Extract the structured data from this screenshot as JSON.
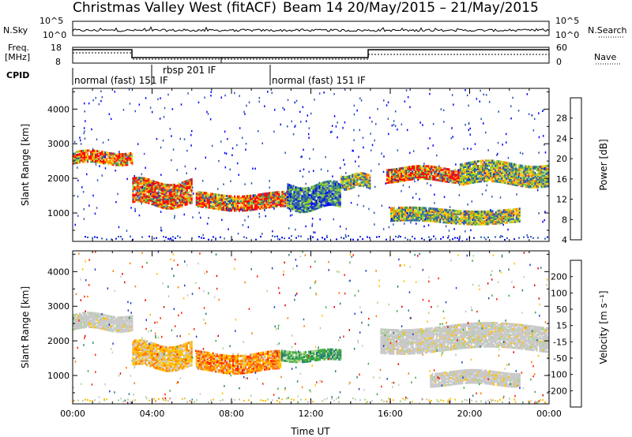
{
  "header": {
    "site_title": "Christmas Valley West (fitACF)",
    "beam_date": "Beam 14 20/May/2015 – 21/May/2015"
  },
  "strips": {
    "nsky_label": "N.Sky",
    "nsky_ticks": [
      "10^5",
      "10^0"
    ],
    "nsearch_label": "N.Search",
    "nsearch_ticks": [
      "10^5",
      "10^0"
    ],
    "freq_label_line1": "Freq.",
    "freq_label_line2": "[MHz]",
    "freq_ticks": [
      "18",
      "8"
    ],
    "nave_label": "Nave",
    "nave_ticks": [
      "60",
      "0"
    ],
    "cpid_label": "CPID",
    "cpid_segments": [
      {
        "text": "normal (fast) 151 IF"
      },
      {
        "text": "rbsp 201 IF"
      },
      {
        "text": "normal (fast) 151 IF"
      }
    ]
  },
  "chart_data": [
    {
      "type": "heatmap",
      "panel": "power",
      "ylabel": "Slant Range [km]",
      "yticks": [
        1000,
        2000,
        3000,
        4000
      ],
      "ylim": [
        180,
        4600
      ],
      "xlim_hours": [
        0,
        24
      ],
      "xticks": [
        "00:00",
        "04:00",
        "08:00",
        "12:00",
        "16:00",
        "20:00",
        "00:00"
      ],
      "colorbar": {
        "label": "Power [dB]",
        "ticks": [
          "28",
          "24",
          "20",
          "16",
          "12",
          "8",
          "4"
        ],
        "colors": [
          "#ff0000",
          "#ff7a00",
          "#ffcc00",
          "#9bd030",
          "#3c9a60",
          "#2a55b0",
          "#0000ff"
        ]
      },
      "bands": [
        {
          "t0": 0.0,
          "t1": 3.0,
          "r0": 2400,
          "r1": 2750,
          "level": "high"
        },
        {
          "t0": 3.0,
          "t1": 6.0,
          "r0": 1200,
          "r1": 1900,
          "level": "high"
        },
        {
          "t0": 6.2,
          "t1": 10.8,
          "r0": 1100,
          "r1": 1550,
          "level": "high"
        },
        {
          "t0": 10.8,
          "t1": 13.5,
          "r0": 1100,
          "r1": 1800,
          "level": "low"
        },
        {
          "t0": 13.5,
          "t1": 15.0,
          "r0": 1700,
          "r1": 2100,
          "level": "medium"
        },
        {
          "t0": 15.8,
          "t1": 19.5,
          "r0": 1900,
          "r1": 2300,
          "level": "high"
        },
        {
          "t0": 19.5,
          "t1": 24.0,
          "r0": 1800,
          "r1": 2400,
          "level": "medium"
        },
        {
          "t0": 16.0,
          "t1": 22.5,
          "r0": 700,
          "r1": 1100,
          "level": "medium"
        }
      ]
    },
    {
      "type": "heatmap",
      "panel": "velocity",
      "ylabel": "Slant Range [km]",
      "yticks": [
        1000,
        2000,
        3000,
        4000
      ],
      "ylim": [
        180,
        4600
      ],
      "xlim_hours": [
        0,
        24
      ],
      "xticks": [
        "00:00",
        "04:00",
        "08:00",
        "12:00",
        "16:00",
        "20:00",
        "00:00"
      ],
      "xlabel": "Time UT",
      "colorbar": {
        "label": "Velocity [m s⁻¹]",
        "ticks": [
          "200",
          "100",
          "50",
          "15",
          "-15",
          "-50",
          "-100",
          "-200"
        ],
        "colors": [
          "#1a3cc8",
          "#1f7a7a",
          "#3faa40",
          "#a7d38a",
          "#c8c8c8",
          "#ffc000",
          "#ff7a00",
          "#ff2000",
          "#e00000"
        ]
      },
      "bands": [
        {
          "t0": 0.0,
          "t1": 3.0,
          "r0": 2300,
          "r1": 2750,
          "level": "ground"
        },
        {
          "t0": 3.0,
          "t1": 6.0,
          "r0": 1200,
          "r1": 1900,
          "level": "neg-small"
        },
        {
          "t0": 6.2,
          "t1": 10.5,
          "r0": 1100,
          "r1": 1600,
          "level": "neg-large"
        },
        {
          "t0": 10.5,
          "t1": 13.5,
          "r0": 1400,
          "r1": 1700,
          "level": "pos-small"
        },
        {
          "t0": 15.5,
          "t1": 24.0,
          "r0": 1700,
          "r1": 2400,
          "level": "ground"
        },
        {
          "t0": 18.0,
          "t1": 22.5,
          "r0": 700,
          "r1": 1100,
          "level": "ground"
        }
      ]
    }
  ]
}
